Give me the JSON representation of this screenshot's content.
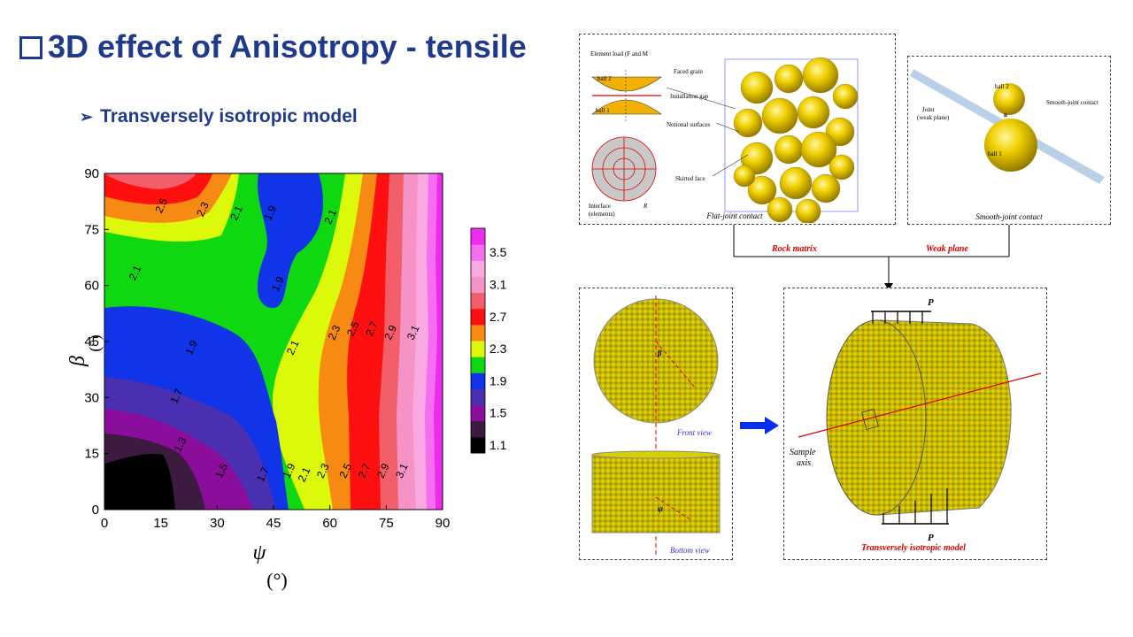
{
  "slide": {
    "title": "3D effect of Anisotropy - tensile",
    "bullet": "Transversely isotropic model"
  },
  "chart_data": {
    "type": "heatmap",
    "xlabel": "ψ",
    "xunit": "(°)",
    "ylabel": "β",
    "yunit": "(°)",
    "xlim": [
      0,
      90
    ],
    "ylim": [
      0,
      90
    ],
    "x_ticks": [
      0,
      15,
      30,
      45,
      60,
      75,
      90
    ],
    "y_ticks": [
      0,
      15,
      30,
      45,
      60,
      75,
      90
    ],
    "colorbar": {
      "levels": [
        1.1,
        1.3,
        1.5,
        1.7,
        1.9,
        2.1,
        2.3,
        2.5,
        2.7,
        2.9,
        3.1,
        3.3,
        3.5,
        3.7
      ],
      "colors": [
        "#000000",
        "#3d1a40",
        "#8b0d9b",
        "#4a2fb0",
        "#1234e8",
        "#10d810",
        "#dcf90c",
        "#f78a12",
        "#ff1010",
        "#f25f6a",
        "#f693c6",
        "#f9a8e2",
        "#f56ef0",
        "#ee2cee"
      ],
      "tick_labels": [
        "1.1",
        "1.5",
        "1.9",
        "2.3",
        "2.7",
        "3.1",
        "3.5"
      ]
    },
    "contour_labels": [
      {
        "text": "2.5",
        "x": 16,
        "y": 81
      },
      {
        "text": "2.3",
        "x": 27,
        "y": 80
      },
      {
        "text": "2.1",
        "x": 36,
        "y": 79
      },
      {
        "text": "1.9",
        "x": 45,
        "y": 79
      },
      {
        "text": "2.1",
        "x": 61,
        "y": 78
      },
      {
        "text": "2.1",
        "x": 9,
        "y": 63
      },
      {
        "text": "1.9",
        "x": 47,
        "y": 60
      },
      {
        "text": "1.9",
        "x": 24,
        "y": 43
      },
      {
        "text": "2.1",
        "x": 51,
        "y": 43
      },
      {
        "text": "2.3",
        "x": 62,
        "y": 47
      },
      {
        "text": "2.5",
        "x": 67,
        "y": 48
      },
      {
        "text": "2.7",
        "x": 72,
        "y": 48
      },
      {
        "text": "2.9",
        "x": 77,
        "y": 47
      },
      {
        "text": "3.1",
        "x": 83,
        "y": 47
      },
      {
        "text": "1.7",
        "x": 20,
        "y": 30
      },
      {
        "text": "1.3",
        "x": 21,
        "y": 17
      },
      {
        "text": "1.5",
        "x": 32,
        "y": 10
      },
      {
        "text": "1.7",
        "x": 43,
        "y": 9
      },
      {
        "text": "1.9",
        "x": 50,
        "y": 10
      },
      {
        "text": "2.1",
        "x": 54,
        "y": 9
      },
      {
        "text": "2.3",
        "x": 59,
        "y": 10
      },
      {
        "text": "2.5",
        "x": 65,
        "y": 10
      },
      {
        "text": "2.7",
        "x": 70,
        "y": 10
      },
      {
        "text": "2.9",
        "x": 75,
        "y": 10
      },
      {
        "text": "3.1",
        "x": 80,
        "y": 10
      }
    ]
  },
  "figure": {
    "element_load": "Element load (F",
    "element_load_and": " and M",
    "faced_grain": "Faced grain",
    "installation_gap": "Installation gap",
    "notional_surfaces": "Notional surfaces",
    "skirted_face": "Skirted face",
    "interface": "Interface",
    "elements": "(elements)",
    "ball2": "ball 2",
    "ball1": "ball 1",
    "r_label": "R",
    "flat_joint_caption": "Flat-joint contact",
    "joint": "Joint",
    "weak_plane_paren": "(weak plane)",
    "smooth_joint_contact": "Smooth-joint contact",
    "smooth_joint_caption": "Smooth-joint contact",
    "nc_label": "n",
    "rock_matrix": "Rock matrix",
    "weak_plane": "Weak plane",
    "beta": "β",
    "psi": "ψ",
    "front_view": "Front view",
    "bottom_view": "Bottom view",
    "P_top": "P",
    "P_bottom": "P",
    "sample_axis_1": "Sample",
    "sample_axis_2": "axis",
    "model_caption": "Transversely isotropic model"
  }
}
